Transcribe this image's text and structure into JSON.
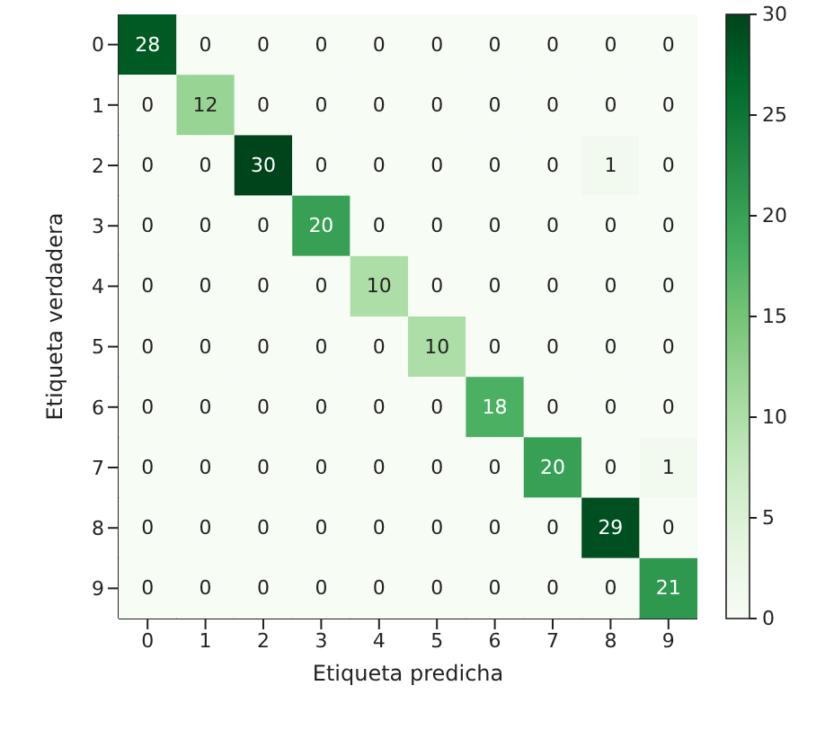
{
  "chart_data": {
    "type": "heatmap",
    "xlabel": "Etiqueta predicha",
    "ylabel": "Etiqueta verdadera",
    "categories": [
      "0",
      "1",
      "2",
      "3",
      "4",
      "5",
      "6",
      "7",
      "8",
      "9"
    ],
    "y_categories": [
      "0",
      "1",
      "2",
      "3",
      "4",
      "5",
      "6",
      "7",
      "8",
      "9"
    ],
    "cells": [
      [
        28,
        0,
        0,
        0,
        0,
        0,
        0,
        0,
        0,
        0
      ],
      [
        0,
        12,
        0,
        0,
        0,
        0,
        0,
        0,
        0,
        0
      ],
      [
        0,
        0,
        30,
        0,
        0,
        0,
        0,
        0,
        1,
        0
      ],
      [
        0,
        0,
        0,
        20,
        0,
        0,
        0,
        0,
        0,
        0
      ],
      [
        0,
        0,
        0,
        0,
        10,
        0,
        0,
        0,
        0,
        0
      ],
      [
        0,
        0,
        0,
        0,
        0,
        10,
        0,
        0,
        0,
        0
      ],
      [
        0,
        0,
        0,
        0,
        0,
        0,
        18,
        0,
        0,
        0
      ],
      [
        0,
        0,
        0,
        0,
        0,
        0,
        0,
        20,
        0,
        1
      ],
      [
        0,
        0,
        0,
        0,
        0,
        0,
        0,
        0,
        29,
        0
      ],
      [
        0,
        0,
        0,
        0,
        0,
        0,
        0,
        0,
        0,
        21
      ]
    ],
    "data_labels": true,
    "clim": [
      0,
      30
    ],
    "cticks": [
      0,
      5,
      10,
      15,
      20,
      25,
      30
    ]
  }
}
